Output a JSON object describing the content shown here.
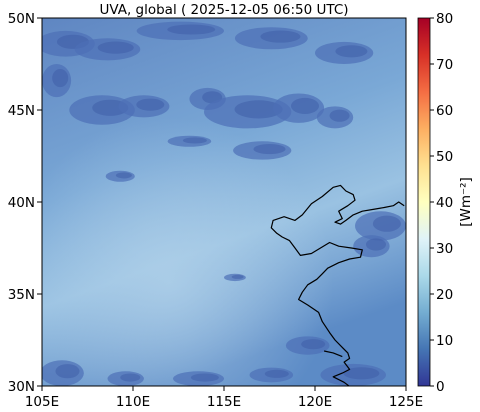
{
  "title": "UVA, global ( 2025-12-05 06:50 UTC)",
  "map": {
    "lon_range": [
      105,
      125
    ],
    "lat_range": [
      30,
      50
    ],
    "x_ticks": [
      {
        "value": 105,
        "label": "105E"
      },
      {
        "value": 110,
        "label": "110E"
      },
      {
        "value": 115,
        "label": "115E"
      },
      {
        "value": 120,
        "label": "120E"
      },
      {
        "value": 125,
        "label": "125E"
      }
    ],
    "y_ticks": [
      {
        "value": 30,
        "label": "30N"
      },
      {
        "value": 35,
        "label": "35N"
      },
      {
        "value": 40,
        "label": "40N"
      },
      {
        "value": 45,
        "label": "45N"
      },
      {
        "value": 50,
        "label": "50N"
      }
    ],
    "coastline": [
      [
        118.0,
        39.1
      ],
      [
        118.3,
        39.2
      ],
      [
        118.9,
        39.0
      ],
      [
        119.3,
        39.3
      ],
      [
        119.8,
        39.9
      ],
      [
        120.4,
        40.3
      ],
      [
        121.0,
        40.8
      ],
      [
        121.4,
        40.9
      ],
      [
        121.7,
        40.6
      ],
      [
        122.1,
        40.4
      ],
      [
        122.2,
        40.1
      ],
      [
        121.8,
        39.8
      ],
      [
        121.3,
        39.5
      ],
      [
        121.5,
        39.1
      ],
      [
        121.1,
        38.9
      ],
      [
        121.4,
        38.8
      ],
      [
        121.7,
        39.0
      ],
      [
        122.1,
        39.3
      ],
      [
        122.6,
        39.5
      ],
      [
        123.2,
        39.6
      ],
      [
        123.8,
        39.7
      ],
      [
        124.3,
        39.8
      ],
      [
        124.6,
        40.0
      ],
      [
        124.9,
        39.8
      ],
      null,
      [
        118.0,
        39.1
      ],
      [
        117.7,
        39.0
      ],
      [
        117.6,
        38.6
      ],
      [
        117.9,
        38.3
      ],
      [
        118.2,
        38.1
      ],
      [
        118.6,
        37.9
      ],
      [
        118.9,
        37.5
      ],
      [
        119.2,
        37.1
      ],
      [
        119.8,
        37.2
      ],
      [
        120.3,
        37.5
      ],
      [
        120.8,
        37.8
      ],
      [
        121.3,
        37.6
      ],
      [
        122.0,
        37.5
      ],
      [
        122.6,
        37.4
      ],
      [
        122.5,
        37.0
      ],
      [
        121.9,
        36.9
      ],
      [
        121.3,
        36.7
      ],
      [
        120.7,
        36.4
      ],
      [
        120.4,
        36.1
      ],
      [
        120.1,
        35.8
      ],
      [
        119.6,
        35.5
      ],
      [
        119.3,
        35.1
      ],
      [
        119.1,
        34.7
      ],
      [
        119.6,
        34.4
      ],
      [
        120.2,
        34.0
      ],
      [
        120.4,
        33.5
      ],
      [
        120.8,
        32.9
      ],
      [
        121.1,
        32.5
      ],
      [
        121.5,
        32.1
      ],
      [
        121.8,
        31.8
      ],
      [
        121.9,
        31.5
      ],
      [
        121.6,
        31.3
      ],
      [
        121.9,
        30.9
      ],
      [
        121.5,
        30.7
      ],
      [
        121.0,
        30.5
      ],
      [
        121.6,
        30.2
      ],
      [
        122.0,
        29.9
      ],
      null,
      [
        120.5,
        31.9
      ],
      [
        121.0,
        31.8
      ],
      [
        121.5,
        31.6
      ]
    ],
    "cloud_patches": [
      [
        106.3,
        48.6,
        1.6,
        0.7
      ],
      [
        108.6,
        48.3,
        1.8,
        0.6
      ],
      [
        112.6,
        49.3,
        2.4,
        0.5
      ],
      [
        117.6,
        48.9,
        2.0,
        0.6
      ],
      [
        121.6,
        48.1,
        1.6,
        0.6
      ],
      [
        105.8,
        46.6,
        0.8,
        0.9
      ],
      [
        108.3,
        45.0,
        1.8,
        0.8
      ],
      [
        110.6,
        45.2,
        1.4,
        0.6
      ],
      [
        114.1,
        45.6,
        1.0,
        0.6
      ],
      [
        116.3,
        44.9,
        2.4,
        0.9
      ],
      [
        119.1,
        45.1,
        1.4,
        0.8
      ],
      [
        121.1,
        44.6,
        1.0,
        0.6
      ],
      [
        113.1,
        43.3,
        1.2,
        0.3
      ],
      [
        117.1,
        42.8,
        1.6,
        0.5
      ],
      [
        109.3,
        41.4,
        0.8,
        0.3
      ],
      [
        123.6,
        38.7,
        1.4,
        0.8
      ],
      [
        123.1,
        37.6,
        1.0,
        0.6
      ],
      [
        115.6,
        35.9,
        0.6,
        0.2
      ],
      [
        119.6,
        32.2,
        1.2,
        0.5
      ],
      [
        106.1,
        30.7,
        1.2,
        0.7
      ],
      [
        109.6,
        30.4,
        1.0,
        0.4
      ],
      [
        113.6,
        30.4,
        1.4,
        0.4
      ],
      [
        117.6,
        30.6,
        1.2,
        0.4
      ],
      [
        122.1,
        30.6,
        1.8,
        0.6
      ]
    ]
  },
  "colorbar": {
    "label": "[Wm⁻²]",
    "vmin": 0,
    "vmax": 80,
    "ticks": [
      {
        "value": 0,
        "label": "0"
      },
      {
        "value": 10,
        "label": "10"
      },
      {
        "value": 20,
        "label": "20"
      },
      {
        "value": 30,
        "label": "30"
      },
      {
        "value": 40,
        "label": "40"
      },
      {
        "value": 50,
        "label": "50"
      },
      {
        "value": 60,
        "label": "60"
      },
      {
        "value": 70,
        "label": "70"
      },
      {
        "value": 80,
        "label": "80"
      }
    ],
    "colors": [
      "#313695",
      "#4575b4",
      "#74add1",
      "#abd9e9",
      "#e0f3f8",
      "#ffffbf",
      "#fee090",
      "#fdae61",
      "#f46d43",
      "#d73027",
      "#a50026"
    ]
  }
}
